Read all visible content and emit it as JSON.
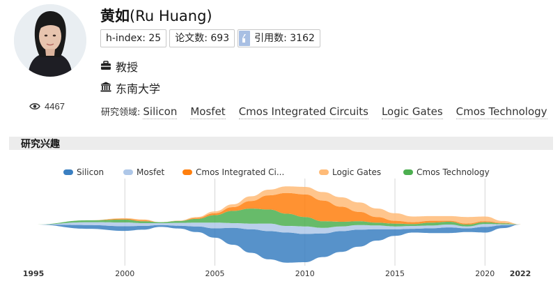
{
  "profile": {
    "name_cn": "黄如",
    "name_en": "(Ru Huang)",
    "h_index_label": "h-index: 25",
    "papers_label": "论文数: 693",
    "citations_label": "引用数: 3162",
    "title": "教授",
    "organization": "东南大学",
    "views": "4467"
  },
  "research_fields": {
    "label": "研究领域:",
    "tags": [
      "Silicon",
      "Mosfet",
      "Cmos Integrated Circuits",
      "Logic Gates",
      "Cmos Technology"
    ]
  },
  "section": {
    "title": "研究兴趣"
  },
  "icons": {
    "views": "eye-icon",
    "title": "briefcase-icon",
    "organization": "institution-icon",
    "citations": "quote-icon"
  },
  "chart_data": {
    "type": "area",
    "style": "streamgraph",
    "x": [
      1995,
      1998,
      2000,
      2001,
      2002,
      2003,
      2004,
      2005,
      2006,
      2007,
      2008,
      2009,
      2010,
      2011,
      2012,
      2013,
      2014,
      2015,
      2016,
      2017,
      2018,
      2019,
      2020,
      2021,
      2022
    ],
    "x_ticks": [
      "1995",
      "2000",
      "2005",
      "2010",
      "2015",
      "2020",
      "2022"
    ],
    "x_ticks_bold": [
      "1995",
      "2022"
    ],
    "legend_position": "top",
    "series": [
      {
        "name": "Silicon",
        "color": "#3a7fc1",
        "values": [
          0,
          0.4,
          0.5,
          0.4,
          0.2,
          0.3,
          0.6,
          1.0,
          1.8,
          2.5,
          3.0,
          3.2,
          3.0,
          2.5,
          2.2,
          1.8,
          1.2,
          0.7,
          0.4,
          0.5,
          0.6,
          0.4,
          0.6,
          0.3,
          0
        ]
      },
      {
        "name": "Mosfet",
        "color": "#aec7e8",
        "values": [
          0,
          0.3,
          0.4,
          0.3,
          0.2,
          0.3,
          0.4,
          0.6,
          0.5,
          0.6,
          0.8,
          0.7,
          0.8,
          0.6,
          0.5,
          0.5,
          0.4,
          0.3,
          0.3,
          0.3,
          0.3,
          0.2,
          0.3,
          0.1,
          0
        ]
      },
      {
        "name": "Cmos Integrated Circuits",
        "color": "#ff7f0e",
        "values": [
          0,
          0,
          0.1,
          0.1,
          0,
          0,
          0.1,
          0.2,
          0.4,
          0.8,
          1.5,
          2.2,
          2.4,
          2.2,
          1.6,
          1.0,
          0.6,
          0.3,
          0.2,
          0.2,
          0.1,
          0.1,
          0.1,
          0.05,
          0
        ]
      },
      {
        "name": "Logic Gates",
        "color": "#ffbb78",
        "values": [
          0,
          0,
          0.05,
          0.1,
          0,
          0.05,
          0.1,
          0.2,
          0.3,
          0.5,
          0.6,
          0.7,
          0.8,
          0.9,
          1.0,
          1.0,
          0.9,
          0.8,
          0.6,
          0.5,
          0.5,
          0.7,
          0.5,
          0.2,
          0
        ]
      },
      {
        "name": "Cmos Technology",
        "color": "#4caf50",
        "values": [
          0,
          0.2,
          0.3,
          0.2,
          0.1,
          0.2,
          0.4,
          0.8,
          1.3,
          1.6,
          1.5,
          1.3,
          1.0,
          0.7,
          0.5,
          0.4,
          0.3,
          0.3,
          0.2,
          0.3,
          0.3,
          0.2,
          0.2,
          0.1,
          0
        ]
      }
    ]
  }
}
